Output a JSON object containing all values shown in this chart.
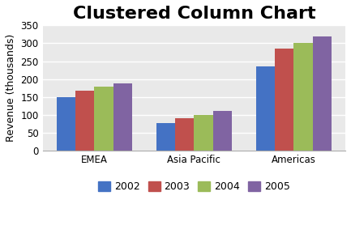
{
  "title": "Clustered Column Chart",
  "ylabel": "Revenue (thousands)",
  "categories": [
    "EMEA",
    "Asia Pacific",
    "Americas"
  ],
  "series": {
    "2002": [
      150,
      78,
      235
    ],
    "2003": [
      167,
      91,
      286
    ],
    "2004": [
      179,
      100,
      302
    ],
    "2005": [
      188,
      112,
      320
    ]
  },
  "colors": {
    "2002": "#4472C4",
    "2003": "#C0504D",
    "2004": "#9BBB59",
    "2005": "#8064A2"
  },
  "ylim": [
    0,
    350
  ],
  "yticks": [
    0,
    50,
    100,
    150,
    200,
    250,
    300,
    350
  ],
  "legend_labels": [
    "2002",
    "2003",
    "2004",
    "2005"
  ],
  "bar_width": 0.19,
  "background_color": "#FFFFFF",
  "plot_bg_color": "#E9E9E9",
  "title_fontsize": 16,
  "axis_label_fontsize": 9,
  "tick_fontsize": 8.5,
  "legend_fontsize": 9
}
